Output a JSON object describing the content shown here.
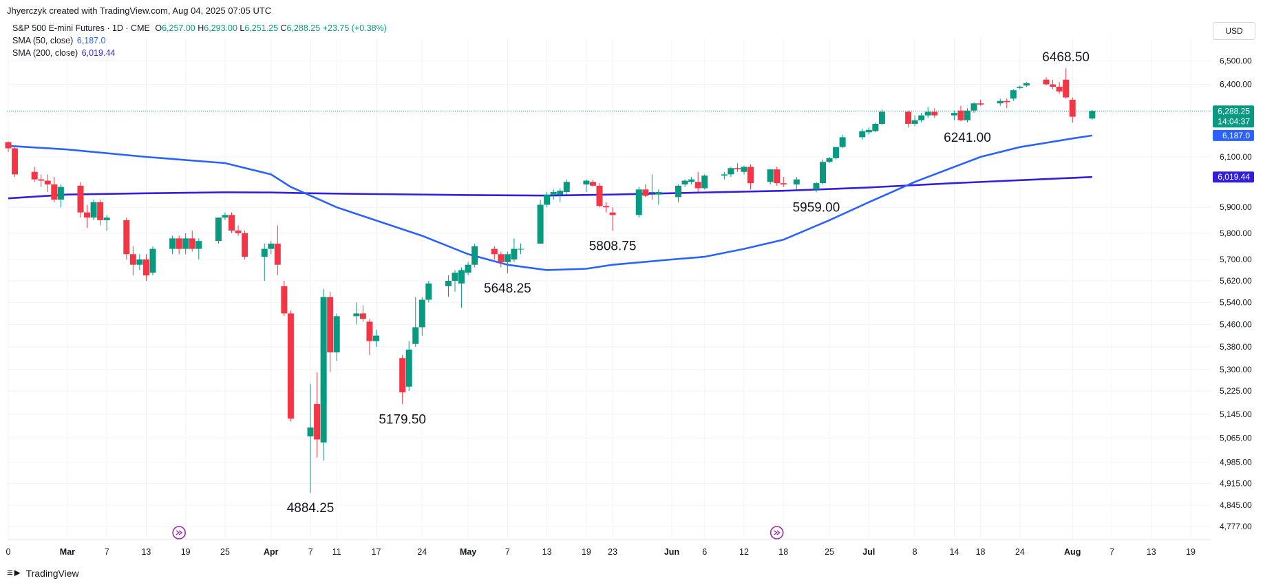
{
  "header": {
    "created_line": "Jhyerczyk created with TradingView.com, Aug 04, 2025 07:05 UTC"
  },
  "legend": {
    "symbol": "S&P 500 E-mini Futures · 1D · CME",
    "o_label": "O",
    "o_value": "6,257.00",
    "h_label": "H",
    "h_value": "6,293.00",
    "l_label": "L",
    "l_value": "6,251.25",
    "c_label": "C",
    "c_value": "6,288.25",
    "change": "+23.75 (+0.38%)",
    "sma50_label": "SMA (50, close)",
    "sma50_value": "6,187.0",
    "sma200_label": "SMA (200, close)",
    "sma200_value": "6,019.44"
  },
  "currency": "USD",
  "footer": {
    "brand": "TradingView",
    "logo_icon": "tradingview-logo-icon"
  },
  "colors": {
    "up": "#089981",
    "down": "#f23645",
    "sma50": "#2962ff",
    "sma200": "#311ede",
    "grid": "#f0f3fa",
    "axis_text": "#131722"
  },
  "chart_data": {
    "type": "candlestick",
    "y_ticks": [
      "6,500.00",
      "6,400.00",
      "6,100.00",
      "5,900.00",
      "5,800.00",
      "5,700.00",
      "5,620.00",
      "5,540.00",
      "5,460.00",
      "5,380.00",
      "5,300.00",
      "5,225.00",
      "5,145.00",
      "5,065.00",
      "4,985.00",
      "4,915.00",
      "4,845.00",
      "4,777.00"
    ],
    "y_scale": "log",
    "ylim": [
      4740,
      6600
    ],
    "x_ticks": [
      {
        "label": "0",
        "date": "2025-02-20",
        "bold": false
      },
      {
        "label": "Mar",
        "date": "2025-03-01",
        "bold": true
      },
      {
        "label": "7",
        "date": "2025-03-07",
        "bold": false
      },
      {
        "label": "13",
        "date": "2025-03-13",
        "bold": false
      },
      {
        "label": "19",
        "date": "2025-03-19",
        "bold": false
      },
      {
        "label": "25",
        "date": "2025-03-25",
        "bold": false
      },
      {
        "label": "Apr",
        "date": "2025-04-01",
        "bold": true
      },
      {
        "label": "7",
        "date": "2025-04-07",
        "bold": false
      },
      {
        "label": "11",
        "date": "2025-04-11",
        "bold": false
      },
      {
        "label": "17",
        "date": "2025-04-17",
        "bold": false
      },
      {
        "label": "24",
        "date": "2025-04-24",
        "bold": false
      },
      {
        "label": "May",
        "date": "2025-05-01",
        "bold": true
      },
      {
        "label": "7",
        "date": "2025-05-07",
        "bold": false
      },
      {
        "label": "13",
        "date": "2025-05-13",
        "bold": false
      },
      {
        "label": "19",
        "date": "2025-05-19",
        "bold": false
      },
      {
        "label": "23",
        "date": "2025-05-23",
        "bold": false
      },
      {
        "label": "Jun",
        "date": "2025-06-01",
        "bold": true
      },
      {
        "label": "6",
        "date": "2025-06-06",
        "bold": false
      },
      {
        "label": "12",
        "date": "2025-06-12",
        "bold": false
      },
      {
        "label": "18",
        "date": "2025-06-18",
        "bold": false
      },
      {
        "label": "25",
        "date": "2025-06-25",
        "bold": false
      },
      {
        "label": "Jul",
        "date": "2025-07-01",
        "bold": true
      },
      {
        "label": "8",
        "date": "2025-07-08",
        "bold": false
      },
      {
        "label": "14",
        "date": "2025-07-14",
        "bold": false
      },
      {
        "label": "18",
        "date": "2025-07-18",
        "bold": false
      },
      {
        "label": "24",
        "date": "2025-07-24",
        "bold": false
      },
      {
        "label": "Aug",
        "date": "2025-08-01",
        "bold": true
      },
      {
        "label": "7",
        "date": "2025-08-07",
        "bold": false
      },
      {
        "label": "13",
        "date": "2025-08-13",
        "bold": false
      },
      {
        "label": "19",
        "date": "2025-08-19",
        "bold": false
      }
    ],
    "price_labels": [
      {
        "text": "6,288.25",
        "sub": "14:04:37",
        "value": 6288.25,
        "color": "#089981"
      },
      {
        "text": "6,187.0",
        "value": 6187.0,
        "color": "#2962ff"
      },
      {
        "text": "6,019.44",
        "value": 6019.44,
        "color": "#311ede"
      }
    ],
    "current_price": 6288.25,
    "annotations": [
      {
        "text": "6468.50",
        "date": "2025-07-31",
        "value": 6468.5,
        "pos": "above"
      },
      {
        "text": "6241.00",
        "date": "2025-07-16",
        "value": 6241.0,
        "pos": "below"
      },
      {
        "text": "5959.00",
        "date": "2025-06-23",
        "value": 5959.0,
        "pos": "below"
      },
      {
        "text": "5808.75",
        "date": "2025-05-23",
        "value": 5808.75,
        "pos": "below"
      },
      {
        "text": "5648.25",
        "date": "2025-05-07",
        "value": 5648.25,
        "pos": "below"
      },
      {
        "text": "5179.50",
        "date": "2025-04-21",
        "value": 5179.5,
        "pos": "below"
      },
      {
        "text": "4884.25",
        "date": "2025-04-07",
        "value": 4884.25,
        "pos": "below"
      }
    ],
    "event_markers": [
      {
        "date": "2025-03-18"
      },
      {
        "date": "2025-06-17"
      }
    ],
    "sma50": [
      [
        "2025-02-20",
        6145
      ],
      [
        "2025-03-01",
        6130
      ],
      [
        "2025-03-13",
        6100
      ],
      [
        "2025-03-25",
        6075
      ],
      [
        "2025-04-01",
        6030
      ],
      [
        "2025-04-04",
        5980
      ],
      [
        "2025-04-11",
        5900
      ],
      [
        "2025-04-24",
        5790
      ],
      [
        "2025-05-01",
        5720
      ],
      [
        "2025-05-07",
        5680
      ],
      [
        "2025-05-13",
        5660
      ],
      [
        "2025-05-19",
        5665
      ],
      [
        "2025-05-23",
        5680
      ],
      [
        "2025-06-01",
        5700
      ],
      [
        "2025-06-06",
        5710
      ],
      [
        "2025-06-12",
        5740
      ],
      [
        "2025-06-18",
        5775
      ],
      [
        "2025-06-25",
        5850
      ],
      [
        "2025-07-01",
        5920
      ],
      [
        "2025-07-08",
        6000
      ],
      [
        "2025-07-14",
        6060
      ],
      [
        "2025-07-18",
        6100
      ],
      [
        "2025-07-24",
        6140
      ],
      [
        "2025-08-01",
        6175
      ],
      [
        "2025-08-04",
        6187
      ]
    ],
    "sma200": [
      [
        "2025-02-20",
        5935
      ],
      [
        "2025-03-01",
        5950
      ],
      [
        "2025-03-13",
        5955
      ],
      [
        "2025-03-25",
        5959
      ],
      [
        "2025-04-01",
        5958
      ],
      [
        "2025-04-07",
        5955
      ],
      [
        "2025-04-17",
        5952
      ],
      [
        "2025-05-01",
        5948
      ],
      [
        "2025-05-13",
        5946
      ],
      [
        "2025-05-23",
        5950
      ],
      [
        "2025-06-06",
        5958
      ],
      [
        "2025-06-18",
        5965
      ],
      [
        "2025-07-01",
        5978
      ],
      [
        "2025-07-14",
        5995
      ],
      [
        "2025-07-24",
        6007
      ],
      [
        "2025-08-04",
        6019.44
      ]
    ],
    "candles": [
      [
        "2025-02-20",
        6160,
        6163,
        6120,
        6135
      ],
      [
        "2025-02-21",
        6135,
        6140,
        6020,
        6030
      ],
      [
        "2025-02-24",
        6040,
        6060,
        6000,
        6010
      ],
      [
        "2025-02-25",
        6010,
        6030,
        5980,
        6005
      ],
      [
        "2025-02-26",
        6005,
        6030,
        5960,
        5990
      ],
      [
        "2025-02-27",
        5990,
        6020,
        5920,
        5930
      ],
      [
        "2025-02-28",
        5930,
        5990,
        5900,
        5980
      ],
      [
        "2025-03-03",
        5985,
        6000,
        5860,
        5880
      ],
      [
        "2025-03-04",
        5880,
        5910,
        5820,
        5860
      ],
      [
        "2025-03-05",
        5860,
        5930,
        5850,
        5920
      ],
      [
        "2025-03-06",
        5920,
        5930,
        5830,
        5850
      ],
      [
        "2025-03-07",
        5850,
        5870,
        5810,
        5860
      ],
      [
        "2025-03-10",
        5850,
        5860,
        5700,
        5720
      ],
      [
        "2025-03-11",
        5720,
        5750,
        5640,
        5680
      ],
      [
        "2025-03-12",
        5680,
        5720,
        5660,
        5700
      ],
      [
        "2025-03-13",
        5700,
        5720,
        5620,
        5640
      ],
      [
        "2025-03-14",
        5650,
        5750,
        5640,
        5740
      ],
      [
        "2025-03-17",
        5740,
        5790,
        5720,
        5780
      ],
      [
        "2025-03-18",
        5780,
        5790,
        5720,
        5740
      ],
      [
        "2025-03-19",
        5740,
        5800,
        5720,
        5780
      ],
      [
        "2025-03-20",
        5780,
        5810,
        5730,
        5740
      ],
      [
        "2025-03-21",
        5740,
        5780,
        5700,
        5770
      ],
      [
        "2025-03-24",
        5770,
        5860,
        5760,
        5860
      ],
      [
        "2025-03-25",
        5860,
        5880,
        5850,
        5870
      ],
      [
        "2025-03-26",
        5870,
        5880,
        5800,
        5810
      ],
      [
        "2025-03-27",
        5810,
        5830,
        5790,
        5800
      ],
      [
        "2025-03-28",
        5800,
        5810,
        5700,
        5710
      ],
      [
        "2025-03-31",
        5710,
        5760,
        5620,
        5740
      ],
      [
        "2025-04-01",
        5740,
        5770,
        5720,
        5760
      ],
      [
        "2025-04-02",
        5760,
        5830,
        5640,
        5680
      ],
      [
        "2025-04-03",
        5600,
        5620,
        5490,
        5500
      ],
      [
        "2025-04-04",
        5500,
        5510,
        5120,
        5130
      ],
      [
        "2025-04-07",
        5070,
        5250,
        4884.25,
        5100
      ],
      [
        "2025-04-08",
        5180,
        5290,
        5000,
        5060
      ],
      [
        "2025-04-09",
        5050,
        5590,
        4990,
        5560
      ],
      [
        "2025-04-10",
        5560,
        5580,
        5290,
        5360
      ],
      [
        "2025-04-11",
        5360,
        5500,
        5330,
        5490
      ],
      [
        "2025-04-14",
        5490,
        5540,
        5460,
        5500
      ],
      [
        "2025-04-15",
        5500,
        5530,
        5470,
        5480
      ],
      [
        "2025-04-16",
        5470,
        5480,
        5350,
        5400
      ],
      [
        "2025-04-17",
        5400,
        5440,
        5380,
        5420
      ],
      [
        "2025-04-21",
        5340,
        5350,
        5179.5,
        5220
      ],
      [
        "2025-04-22",
        5240,
        5400,
        5225,
        5370
      ],
      [
        "2025-04-23",
        5390,
        5560,
        5380,
        5450
      ],
      [
        "2025-04-24",
        5450,
        5560,
        5420,
        5550
      ],
      [
        "2025-04-25",
        5550,
        5620,
        5540,
        5610
      ],
      [
        "2025-04-28",
        5600,
        5640,
        5560,
        5620
      ],
      [
        "2025-04-29",
        5620,
        5660,
        5580,
        5650
      ],
      [
        "2025-04-30",
        5610,
        5670,
        5520,
        5660
      ],
      [
        "2025-05-01",
        5650,
        5690,
        5640,
        5680
      ],
      [
        "2025-05-02",
        5680,
        5760,
        5670,
        5750
      ],
      [
        "2025-05-05",
        5740,
        5750,
        5700,
        5720
      ],
      [
        "2025-05-06",
        5720,
        5730,
        5670,
        5690
      ],
      [
        "2025-05-07",
        5690,
        5730,
        5648.25,
        5720
      ],
      [
        "2025-05-08",
        5700,
        5780,
        5690,
        5740
      ],
      [
        "2025-05-09",
        5740,
        5760,
        5720,
        5740
      ],
      [
        "2025-05-12",
        5760,
        5930,
        5760,
        5910
      ],
      [
        "2025-05-13",
        5910,
        5960,
        5900,
        5950
      ],
      [
        "2025-05-14",
        5950,
        5970,
        5930,
        5960
      ],
      [
        "2025-05-15",
        5950,
        5975,
        5920,
        5965
      ],
      [
        "2025-05-16",
        5960,
        6010,
        5950,
        6000
      ],
      [
        "2025-05-19",
        5990,
        6010,
        5960,
        6005
      ],
      [
        "2025-05-20",
        6000,
        6010,
        5980,
        5985
      ],
      [
        "2025-05-21",
        5985,
        5995,
        5900,
        5905
      ],
      [
        "2025-05-22",
        5905,
        5920,
        5880,
        5900
      ],
      [
        "2025-05-23",
        5880,
        5900,
        5808.75,
        5870
      ],
      [
        "2025-05-27",
        5870,
        5980,
        5860,
        5970
      ],
      [
        "2025-05-28",
        5970,
        5990,
        5940,
        5945
      ],
      [
        "2025-05-29",
        5960,
        6030,
        5930,
        5960
      ],
      [
        "2025-05-30",
        5950,
        5970,
        5910,
        5960
      ],
      [
        "2025-06-02",
        5940,
        5990,
        5920,
        5985
      ],
      [
        "2025-06-03",
        5990,
        6010,
        5980,
        6005
      ],
      [
        "2025-06-04",
        6000,
        6020,
        5990,
        6010
      ],
      [
        "2025-06-05",
        6000,
        6040,
        5960,
        5975
      ],
      [
        "2025-06-06",
        5975,
        6030,
        5970,
        6025
      ],
      [
        "2025-06-09",
        6025,
        6040,
        6010,
        6030
      ],
      [
        "2025-06-10",
        6030,
        6060,
        6020,
        6055
      ],
      [
        "2025-06-11",
        6055,
        6075,
        6040,
        6050
      ],
      [
        "2025-06-12",
        6040,
        6065,
        6030,
        6060
      ],
      [
        "2025-06-13",
        6060,
        6070,
        5970,
        5995
      ],
      [
        "2025-06-16",
        6000,
        6050,
        5990,
        6050
      ],
      [
        "2025-06-17",
        6050,
        6060,
        5985,
        5995
      ],
      [
        "2025-06-18",
        5995,
        6020,
        5980,
        5990
      ],
      [
        "2025-06-20",
        5990,
        6020,
        5970,
        6010
      ],
      [
        "2025-06-23",
        5970,
        6000,
        5959,
        5995
      ],
      [
        "2025-06-24",
        5995,
        6090,
        5990,
        6080
      ],
      [
        "2025-06-25",
        6080,
        6100,
        6075,
        6095
      ],
      [
        "2025-06-26",
        6095,
        6140,
        6090,
        6140
      ],
      [
        "2025-06-27",
        6140,
        6190,
        6135,
        6180
      ],
      [
        "2025-06-30",
        6180,
        6215,
        6170,
        6205
      ],
      [
        "2025-07-01",
        6200,
        6220,
        6190,
        6210
      ],
      [
        "2025-07-02",
        6205,
        6240,
        6200,
        6235
      ],
      [
        "2025-07-03",
        6235,
        6295,
        6230,
        6285
      ],
      [
        "2025-07-07",
        6285,
        6290,
        6220,
        6235
      ],
      [
        "2025-07-08",
        6235,
        6270,
        6225,
        6250
      ],
      [
        "2025-07-09",
        6250,
        6280,
        6240,
        6270
      ],
      [
        "2025-07-10",
        6270,
        6305,
        6260,
        6285
      ],
      [
        "2025-07-11",
        6285,
        6300,
        6260,
        6270
      ],
      [
        "2025-07-14",
        6270,
        6290,
        6250,
        6280
      ],
      [
        "2025-07-15",
        6290,
        6310,
        6245,
        6250
      ],
      [
        "2025-07-16",
        6250,
        6300,
        6241,
        6290
      ],
      [
        "2025-07-17",
        6290,
        6325,
        6280,
        6320
      ],
      [
        "2025-07-18",
        6320,
        6335,
        6310,
        6315
      ],
      [
        "2025-07-21",
        6320,
        6340,
        6310,
        6330
      ],
      [
        "2025-07-22",
        6330,
        6340,
        6300,
        6325
      ],
      [
        "2025-07-23",
        6340,
        6380,
        6330,
        6375
      ],
      [
        "2025-07-24",
        6385,
        6395,
        6380,
        6390
      ],
      [
        "2025-07-25",
        6395,
        6410,
        6390,
        6405
      ],
      [
        "2025-07-28",
        6420,
        6430,
        6395,
        6400
      ],
      [
        "2025-07-29",
        6400,
        6420,
        6380,
        6390
      ],
      [
        "2025-07-30",
        6390,
        6410,
        6360,
        6370
      ],
      [
        "2025-07-31",
        6420,
        6468.5,
        6340,
        6345
      ],
      [
        "2025-08-01",
        6335,
        6345,
        6240,
        6264.5
      ],
      [
        "2025-08-04",
        6257,
        6293,
        6251.25,
        6288.25
      ]
    ]
  }
}
